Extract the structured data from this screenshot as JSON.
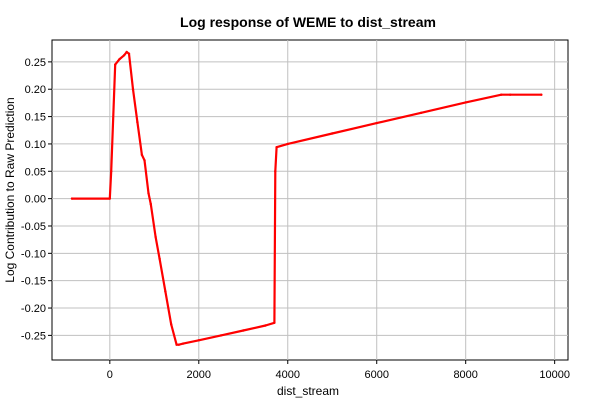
{
  "chart_data": {
    "type": "line",
    "title": "Log response of WEME to dist_stream",
    "xlabel": "dist_stream",
    "ylabel": "Log Contribution to Raw Prediction",
    "xlim": [
      -1300,
      10300
    ],
    "ylim": [
      -0.295,
      0.29
    ],
    "xticks": [
      0,
      2000,
      4000,
      6000,
      8000,
      10000
    ],
    "xtick_labels": [
      "0",
      "2000",
      "4000",
      "6000",
      "8000",
      "10000"
    ],
    "yticks": [
      0.25,
      0.2,
      0.15,
      0.1,
      0.05,
      0.0,
      -0.05,
      -0.1,
      -0.15,
      -0.2,
      -0.25
    ],
    "ytick_labels": [
      "0.25",
      "0.20",
      "0.15",
      "0.10",
      "0.05",
      "0.00",
      "-0.05",
      "-0.10",
      "-0.15",
      "-0.20",
      "-0.25"
    ],
    "grid": true,
    "legend": "none",
    "series": [
      {
        "color": "#ff0000",
        "x": [
          -850,
          0,
          30,
          120,
          220,
          320,
          380,
          430,
          520,
          620,
          720,
          780,
          870,
          920,
          1030,
          1120,
          1250,
          1380,
          1500,
          1550,
          1650,
          2000,
          2500,
          3000,
          3500,
          3700,
          3720,
          3750,
          4000,
          5000,
          6000,
          7000,
          8000,
          8800,
          9000,
          9700
        ],
        "y": [
          0.0,
          0.0,
          0.05,
          0.245,
          0.255,
          0.262,
          0.268,
          0.265,
          0.2,
          0.14,
          0.08,
          0.07,
          0.01,
          -0.01,
          -0.07,
          -0.11,
          -0.17,
          -0.23,
          -0.267,
          -0.267,
          -0.265,
          -0.259,
          -0.25,
          -0.241,
          -0.232,
          -0.227,
          0.05,
          0.094,
          0.1,
          0.119,
          0.138,
          0.157,
          0.176,
          0.19,
          0.19,
          0.19
        ]
      }
    ]
  }
}
